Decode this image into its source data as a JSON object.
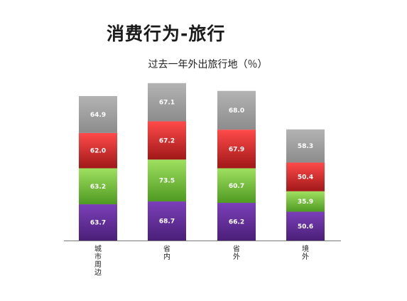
{
  "page_title": "消费行为-旅行",
  "chart_data": {
    "type": "bar",
    "stacked": true,
    "title": "过去一年外出旅行地（％）",
    "categories": [
      "城市周边",
      "省内",
      "省外",
      "境外"
    ],
    "series": [
      {
        "values": [
          63.7,
          68.7,
          66.2,
          50.6
        ],
        "color_top": "#7b3fb8",
        "color_bottom": "#4a1f78"
      },
      {
        "values": [
          63.2,
          73.5,
          60.7,
          35.9
        ],
        "color_top": "#9fe060",
        "color_bottom": "#4f9a22"
      },
      {
        "values": [
          62.0,
          67.2,
          67.9,
          50.4
        ],
        "color_top": "#ff4a4a",
        "color_bottom": "#a01818"
      },
      {
        "values": [
          64.9,
          67.1,
          68.0,
          58.3
        ],
        "color_top": "#b3b3b3",
        "color_bottom": "#8c8c8c"
      }
    ],
    "xlabel": "",
    "ylabel": "",
    "grid": false,
    "legend": "none"
  }
}
